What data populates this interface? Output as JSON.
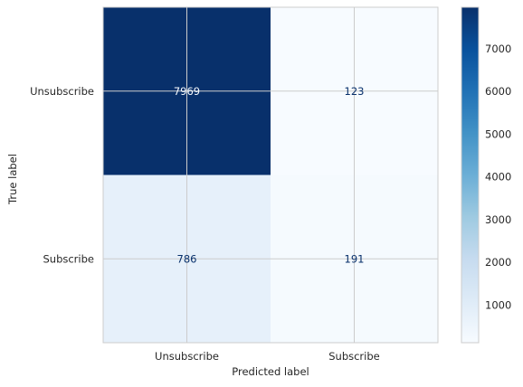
{
  "chart_data": {
    "type": "heatmap",
    "x_categories": [
      "Unsubscribe",
      "Subscribe"
    ],
    "y_categories": [
      "Unsubscribe",
      "Subscribe"
    ],
    "values": [
      [
        7969,
        123
      ],
      [
        786,
        191
      ]
    ],
    "xlabel": "Predicted label",
    "ylabel": "True label",
    "colormap": "Blues",
    "color_low": "#f7fbff",
    "color_high": "#08306b",
    "colorbar_range": [
      123,
      7969
    ],
    "colorbar_ticks": [
      1000,
      2000,
      3000,
      4000,
      5000,
      6000,
      7000
    ],
    "grid": true,
    "grid_color": "#cccccc",
    "annotation_color_dark_cell": "#f7fbff",
    "annotation_color_light_cell": "#08306b"
  }
}
